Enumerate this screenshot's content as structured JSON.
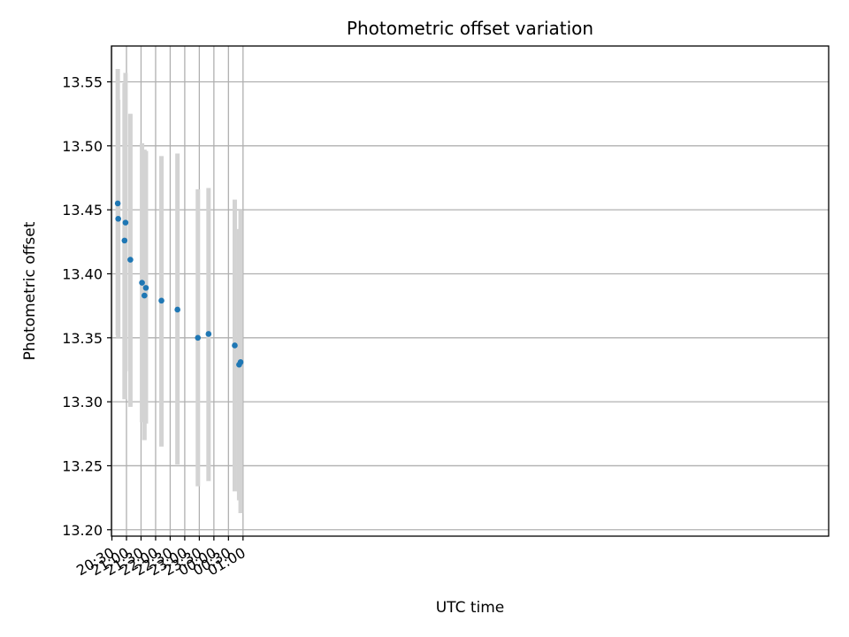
{
  "chart_data": {
    "type": "scatter",
    "title": "Photometric offset variation",
    "xlabel": "UTC time",
    "ylabel": "Photometric offset",
    "x_axis": "time",
    "xlim": [
      "20:29",
      "21:06+1"
    ],
    "ylim": [
      13.195,
      13.578
    ],
    "grid": true,
    "marker_color": "#1f77b4",
    "errorbar_color": "#d3d3d3",
    "xticks": [
      "20:30",
      "21:00",
      "21:30",
      "22:00",
      "22:30",
      "23:00",
      "23:30",
      "00:00",
      "00:30",
      "01:00"
    ],
    "xtick_minutes": [
      30,
      60,
      90,
      120,
      150,
      180,
      210,
      240,
      270,
      300
    ],
    "yticks": [
      "13.20",
      "13.25",
      "13.30",
      "13.35",
      "13.40",
      "13.45",
      "13.50",
      "13.55"
    ],
    "ytick_values": [
      13.2,
      13.25,
      13.3,
      13.35,
      13.4,
      13.45,
      13.5,
      13.55
    ],
    "points": [
      {
        "time": "20:42",
        "y": 13.455,
        "err_low": 13.352,
        "err_high": 13.56
      },
      {
        "time": "20:43",
        "y": 13.443,
        "err_low": 13.35,
        "err_high": 13.536
      },
      {
        "time": "20:56",
        "y": 13.426,
        "err_low": 13.302,
        "err_high": 13.549
      },
      {
        "time": "20:58",
        "y": 13.44,
        "err_low": 13.324,
        "err_high": 13.557
      },
      {
        "time": "21:08",
        "y": 13.411,
        "err_low": 13.296,
        "err_high": 13.525
      },
      {
        "time": "21:32",
        "y": 13.393,
        "err_low": 13.284,
        "err_high": 13.502
      },
      {
        "time": "21:37",
        "y": 13.383,
        "err_low": 13.27,
        "err_high": 13.497
      },
      {
        "time": "21:40",
        "y": 13.389,
        "err_low": 13.283,
        "err_high": 13.496
      },
      {
        "time": "22:12",
        "y": 13.379,
        "err_low": 13.265,
        "err_high": 13.492
      },
      {
        "time": "22:45",
        "y": 13.372,
        "err_low": 13.251,
        "err_high": 13.494
      },
      {
        "time": "23:27",
        "y": 13.35,
        "err_low": 13.234,
        "err_high": 13.466
      },
      {
        "time": "23:49",
        "y": 13.353,
        "err_low": 13.238,
        "err_high": 13.467
      },
      {
        "time": "00:43",
        "y": 13.344,
        "err_low": 13.23,
        "err_high": 13.458
      },
      {
        "time": "00:52",
        "y": 13.329,
        "err_low": 13.223,
        "err_high": 13.435
      },
      {
        "time": "00:55",
        "y": 13.331,
        "err_low": 13.213,
        "err_high": 13.45
      }
    ]
  }
}
